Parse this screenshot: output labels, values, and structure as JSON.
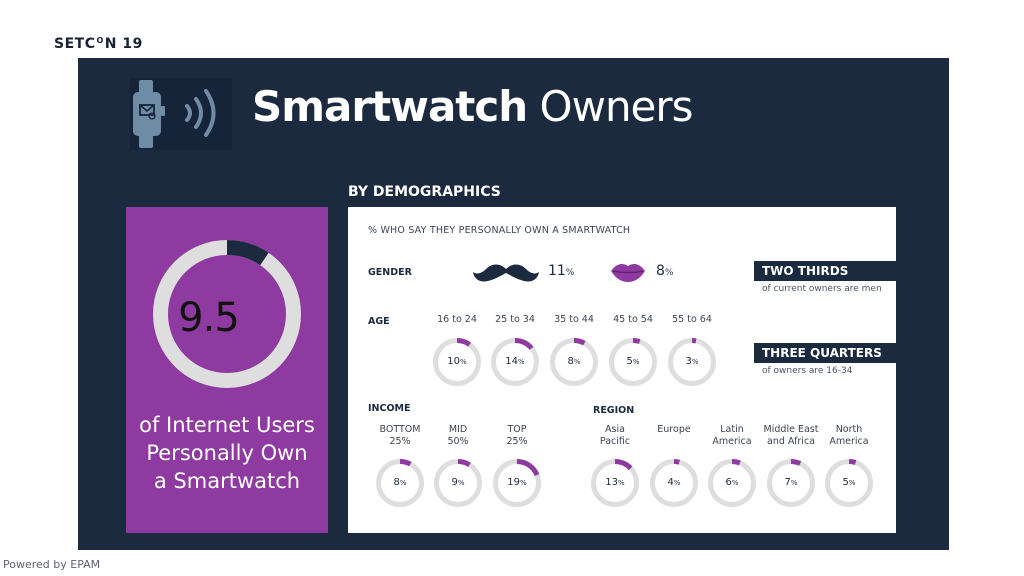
{
  "brand": {
    "logo_left": "SETC",
    "logo_mark": "O",
    "logo_right": "N",
    "logo_year": "19"
  },
  "footer": {
    "text": "Powered by EPAM"
  },
  "header": {
    "title_bold": "Smartwatch",
    "title_light": "Owners",
    "icon": "smartwatch-signal-icon"
  },
  "headline": {
    "value": "9.5",
    "symbol": "%",
    "percent": 9.5,
    "caption": [
      "of Internet Users",
      "Personally Own",
      "a Smartwatch"
    ]
  },
  "demographics": {
    "title": "BY DEMOGRAPHICS",
    "subtitle": "% WHO SAY THEY PERSONALLY OWN A SMARTWATCH",
    "gender": {
      "label": "GENDER",
      "male": {
        "icon": "mustache-icon",
        "value": "11",
        "symbol": "%"
      },
      "female": {
        "icon": "lips-icon",
        "value": "8",
        "symbol": "%"
      }
    },
    "age": {
      "label": "AGE",
      "items": [
        {
          "label": "16 to 24",
          "value": "10",
          "symbol": "%",
          "pct": 10
        },
        {
          "label": "25 to 34",
          "value": "14",
          "symbol": "%",
          "pct": 14
        },
        {
          "label": "35 to 44",
          "value": "8",
          "symbol": "%",
          "pct": 8
        },
        {
          "label": "45 to 54",
          "value": "5",
          "symbol": "%",
          "pct": 5
        },
        {
          "label": "55 to 64",
          "value": "3",
          "symbol": "%",
          "pct": 3
        }
      ]
    },
    "income": {
      "label": "INCOME",
      "items": [
        {
          "label1": "BOTTOM",
          "label2": "25%",
          "value": "8",
          "symbol": "%",
          "pct": 8
        },
        {
          "label1": "MID",
          "label2": "50%",
          "value": "9",
          "symbol": "%",
          "pct": 9
        },
        {
          "label1": "TOP",
          "label2": "25%",
          "value": "19",
          "symbol": "%",
          "pct": 19
        }
      ]
    },
    "region": {
      "label": "REGION",
      "items": [
        {
          "label1": "Asia",
          "label2": "Pacific",
          "value": "13",
          "symbol": "%",
          "pct": 13
        },
        {
          "label1": "Europe",
          "label2": "",
          "value": "4",
          "symbol": "%",
          "pct": 4
        },
        {
          "label1": "Latin",
          "label2": "America",
          "value": "6",
          "symbol": "%",
          "pct": 6
        },
        {
          "label1": "Middle East",
          "label2": "and Africa",
          "value": "7",
          "symbol": "%",
          "pct": 7
        },
        {
          "label1": "North",
          "label2": "America",
          "value": "5",
          "symbol": "%",
          "pct": 5
        }
      ]
    }
  },
  "callouts": [
    {
      "title": "TWO THIRDS",
      "note": "of current owners are men"
    },
    {
      "title": "THREE QUARTERS",
      "note": "of owners are 16-34"
    }
  ],
  "colors": {
    "navy": "#1b2a3e",
    "purple": "#8e3aa0",
    "ring_track": "#dedede",
    "white": "#ffffff"
  }
}
